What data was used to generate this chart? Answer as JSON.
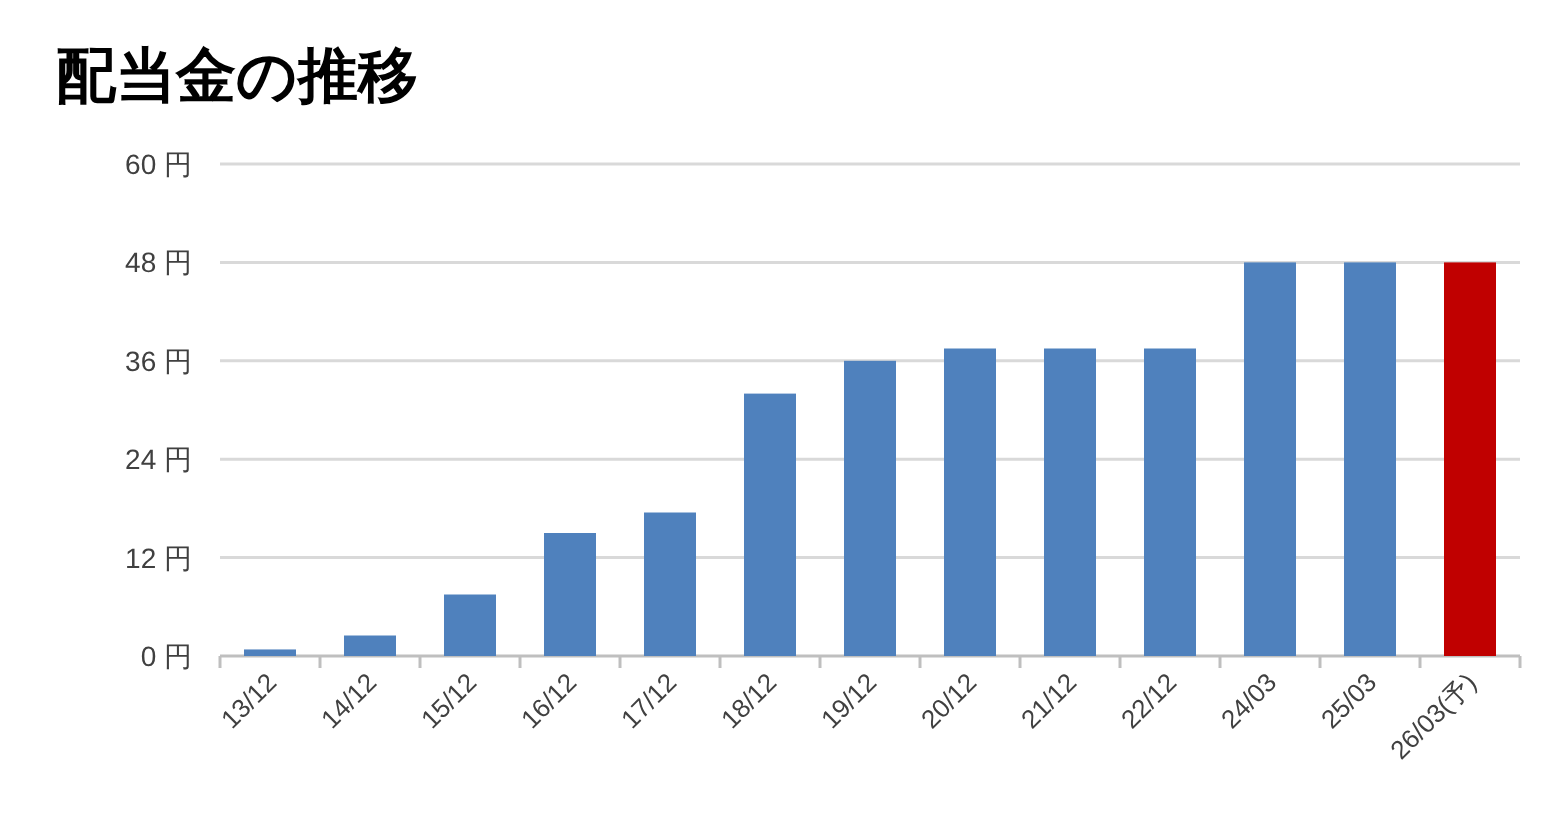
{
  "chart_data": {
    "type": "bar",
    "title": "配当金の推移",
    "categories": [
      "13/12",
      "14/12",
      "15/12",
      "16/12",
      "17/12",
      "18/12",
      "19/12",
      "20/12",
      "21/12",
      "22/12",
      "24/03",
      "25/03",
      "26/03(予)"
    ],
    "values": [
      0.8,
      2.5,
      7.5,
      15,
      17.5,
      32,
      36,
      37.5,
      37.5,
      37.5,
      48,
      48,
      48
    ],
    "colors": [
      "#4f81bd",
      "#4f81bd",
      "#4f81bd",
      "#4f81bd",
      "#4f81bd",
      "#4f81bd",
      "#4f81bd",
      "#4f81bd",
      "#4f81bd",
      "#4f81bd",
      "#4f81bd",
      "#4f81bd",
      "#c00000"
    ],
    "ylim": [
      0,
      60
    ],
    "yticks": [
      {
        "value": 0,
        "label": "0 円"
      },
      {
        "value": 12,
        "label": "12 円"
      },
      {
        "value": 24,
        "label": "24 円"
      },
      {
        "value": 36,
        "label": "36 円"
      },
      {
        "value": 48,
        "label": "48 円"
      },
      {
        "value": 60,
        "label": "60 円"
      }
    ],
    "grid": "y"
  }
}
